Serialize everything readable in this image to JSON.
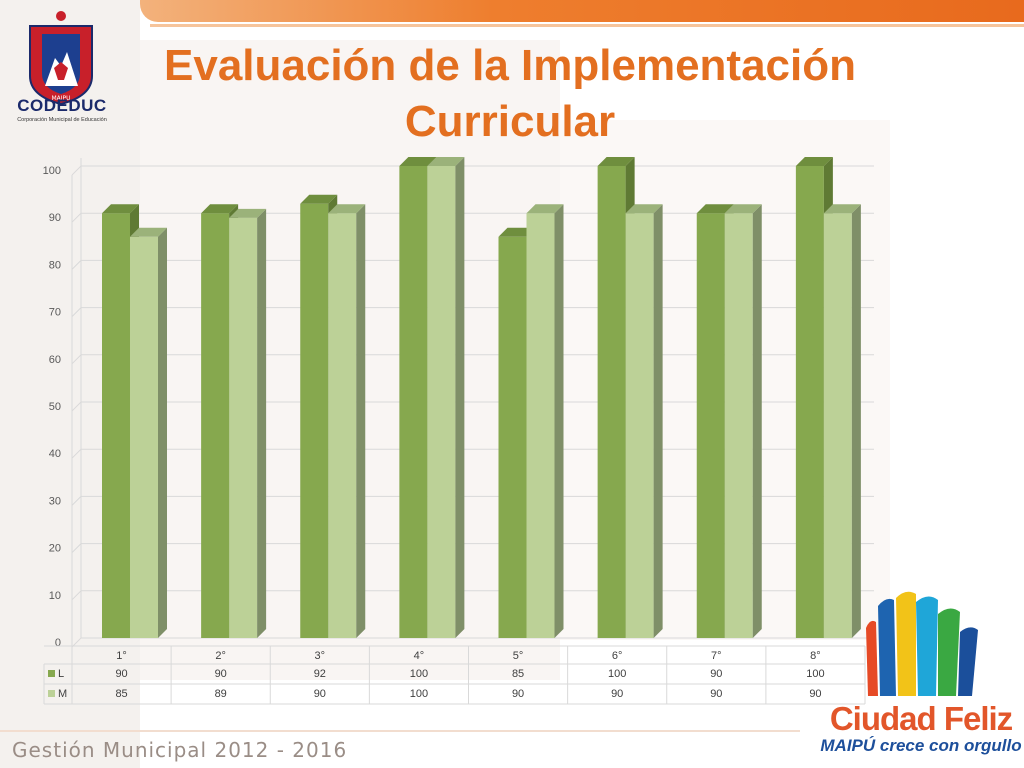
{
  "header": {
    "title": "Evaluación de la Implementación Curricular"
  },
  "logo": {
    "name": "CODEDUC",
    "subtitle": "Corporación Municipal de Educación",
    "city": "MAIPU"
  },
  "footer": {
    "text": "Gestión Municipal 2012 - 2016"
  },
  "brand": {
    "name": "Ciudad Feliz",
    "tagline": "MAIPÚ crece con orgullo"
  },
  "colors": {
    "accent": "#e36f20",
    "series_L": "#86a84e",
    "series_M": "#bcd197"
  },
  "chart_data": {
    "type": "bar",
    "categories": [
      "1°",
      "2°",
      "3°",
      "4°",
      "5°",
      "6°",
      "7°",
      "8°"
    ],
    "series": [
      {
        "name": "L",
        "values": [
          90,
          90,
          92,
          100,
          85,
          100,
          90,
          100
        ]
      },
      {
        "name": "M",
        "values": [
          85,
          89,
          90,
          100,
          90,
          90,
          90,
          90
        ]
      }
    ],
    "title": "",
    "xlabel": "",
    "ylabel": "",
    "ylim": [
      0,
      100
    ],
    "yticks": [
      0,
      10,
      20,
      30,
      40,
      50,
      60,
      70,
      80,
      90,
      100
    ],
    "grid": true,
    "legend": "data-table-below",
    "style": "3d-clustered-column"
  }
}
